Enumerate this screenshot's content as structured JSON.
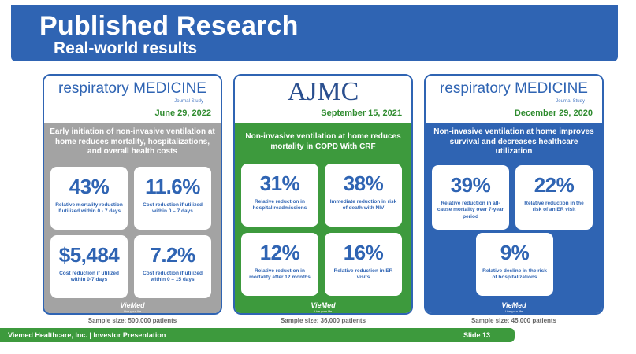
{
  "header": {
    "title": "Published Research",
    "subtitle": "Real-world results"
  },
  "cards": [
    {
      "journal_part1": "respiratory",
      "journal_part2": "MEDICINE",
      "journal_sub": "Journal Study",
      "date": "June 29, 2022",
      "description": "Early initiation of non-invasive ventilation at home reduces mortality, hospitalizations, and overall health costs",
      "stats": [
        {
          "value": "43%",
          "label": "Relative mortality reduction if utilized within 0 - 7 days"
        },
        {
          "value": "11.6%",
          "label": "Cost reduction if utilized within 0 – 7 days"
        },
        {
          "value": "$5,484",
          "label": "Cost reduction if utilized within 0-7 days"
        },
        {
          "value": "7.2%",
          "label": "Cost reduction if utilized within 0 – 15 days"
        }
      ],
      "sample": "Sample size: 500,000 patients",
      "body_color": "#a3a3a3"
    },
    {
      "journal": "AJMC",
      "date": "September 15, 2021",
      "description": "Non-invasive ventilation at home reduces mortality in COPD With CRF",
      "stats": [
        {
          "value": "31%",
          "label": "Relative reduction in hospital readmissions"
        },
        {
          "value": "38%",
          "label": "Immediate reduction in risk of death with NIV"
        },
        {
          "value": "12%",
          "label": "Relative reduction in mortality after 12 months"
        },
        {
          "value": "16%",
          "label": "Relative reduction in ER visits"
        }
      ],
      "sample": "Sample size: 36,000 patients",
      "body_color": "#3d9a3d"
    },
    {
      "journal_part1": "respiratory",
      "journal_part2": "MEDICINE",
      "journal_sub": "Journal Study",
      "date": "December 29, 2020",
      "description": "Non-invasive ventilation at home improves survival and decreases healthcare utilization",
      "stats": [
        {
          "value": "39%",
          "label": "Relative reduction in all-cause mortality over 7-year period"
        },
        {
          "value": "22%",
          "label": "Relative reduction in the risk of an ER visit"
        },
        {
          "value": "9%",
          "label": "Relative decline in the risk of hospitalizations"
        }
      ],
      "sample": "Sample size: 45,000 patients",
      "body_color": "#2f64b3"
    }
  ],
  "logo": {
    "text": "VieMed",
    "tagline": "Live your life"
  },
  "footer": {
    "left": "Viemed Healthcare, Inc. | Investor Presentation",
    "right": "Slide 13"
  },
  "colors": {
    "brand_blue": "#2f64b3",
    "brand_green": "#3d9a3d",
    "date_green": "#2e8b2e",
    "gray": "#a3a3a3"
  }
}
